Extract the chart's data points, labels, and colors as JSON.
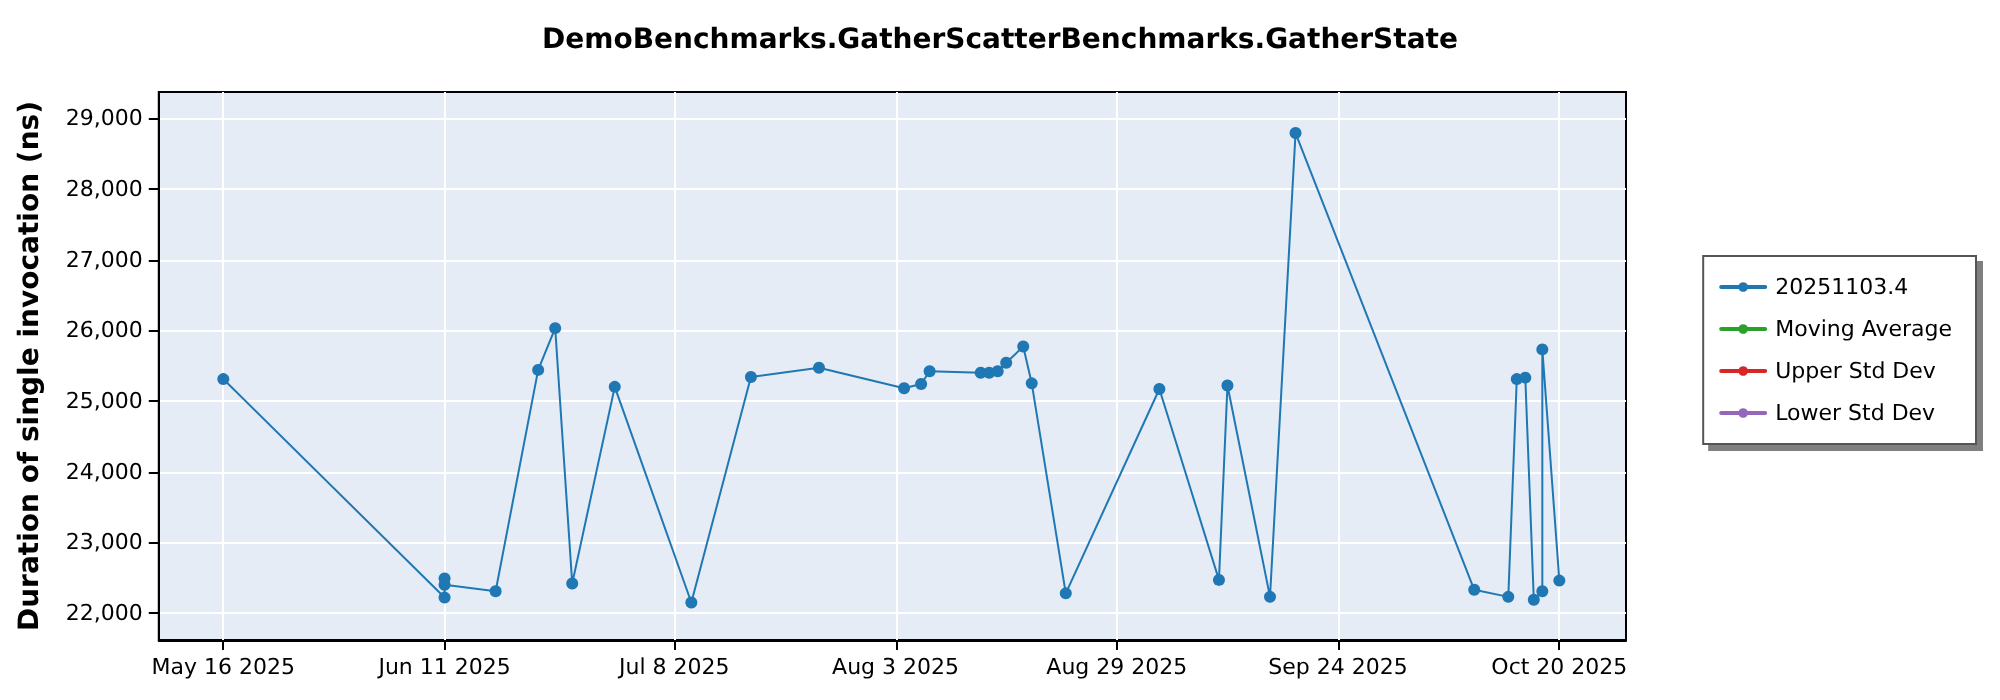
{
  "chart_data": {
    "type": "line",
    "title": "DemoBenchmarks.GatherScatterBenchmarks.GatherState",
    "ylabel": "Duration of single invocation (ns)",
    "x": [
      "2025-05-16",
      "2025-06-11",
      "2025-06-11",
      "2025-06-11",
      "2025-06-17",
      "2025-06-22",
      "2025-06-24",
      "2025-06-26",
      "2025-07-01",
      "2025-07-10",
      "2025-07-17",
      "2025-07-25",
      "2025-08-04",
      "2025-08-06",
      "2025-08-07",
      "2025-08-13",
      "2025-08-14",
      "2025-08-15",
      "2025-08-16",
      "2025-08-18",
      "2025-08-19",
      "2025-08-23",
      "2025-09-03",
      "2025-09-10",
      "2025-09-11",
      "2025-09-16",
      "2025-09-19",
      "2025-10-10",
      "2025-10-14",
      "2025-10-15",
      "2025-10-16",
      "2025-10-17",
      "2025-10-18",
      "2025-10-18",
      "2025-10-20"
    ],
    "series": [
      {
        "name": "20251103.4",
        "color": "#1f77b4",
        "values": [
          25310,
          22220,
          22490,
          22400,
          22310,
          25440,
          26030,
          22420,
          25200,
          22150,
          25340,
          25470,
          25180,
          25240,
          25420,
          25400,
          25400,
          25420,
          25540,
          25770,
          25250,
          22280,
          25170,
          22470,
          25220,
          22230,
          28790,
          22330,
          22230,
          25310,
          25330,
          22190,
          22310,
          25730,
          22460
        ]
      },
      {
        "name": "Moving Average",
        "color": "#2ca02c",
        "values": [
          null,
          null,
          null,
          null,
          null,
          null,
          null,
          null,
          null,
          null,
          null,
          null,
          null,
          null,
          null,
          null,
          null,
          null,
          null,
          null,
          null,
          null,
          null,
          null,
          null,
          null,
          null,
          null,
          null,
          null,
          null,
          null,
          null,
          null,
          null
        ]
      },
      {
        "name": "Upper Std Dev",
        "color": "#d62728",
        "values": [
          null,
          null,
          null,
          null,
          null,
          null,
          null,
          null,
          null,
          null,
          null,
          null,
          null,
          null,
          null,
          null,
          null,
          null,
          null,
          null,
          null,
          null,
          null,
          null,
          null,
          null,
          null,
          null,
          null,
          null,
          null,
          null,
          null,
          null,
          null
        ]
      },
      {
        "name": "Lower Std Dev",
        "color": "#9467bd",
        "values": [
          null,
          null,
          null,
          null,
          null,
          null,
          null,
          null,
          null,
          null,
          null,
          null,
          null,
          null,
          null,
          null,
          null,
          null,
          null,
          null,
          null,
          null,
          null,
          null,
          null,
          null,
          null,
          null,
          null,
          null,
          null,
          null,
          null,
          null,
          null
        ]
      }
    ],
    "xlim": [
      "2025-05-08T10:00",
      "2025-10-27T20:00"
    ],
    "xticks": [
      {
        "value": "2025-05-16",
        "label": "May 16 2025"
      },
      {
        "value": "2025-06-11",
        "label": "Jun 11 2025"
      },
      {
        "value": "2025-07-08",
        "label": "Jul 8 2025"
      },
      {
        "value": "2025-08-03",
        "label": "Aug 3 2025"
      },
      {
        "value": "2025-08-29",
        "label": "Aug 29 2025"
      },
      {
        "value": "2025-09-24",
        "label": "Sep 24 2025"
      },
      {
        "value": "2025-10-20",
        "label": "Oct 20 2025"
      }
    ],
    "ylim": [
      21620,
      29370
    ],
    "yticks": [
      {
        "value": 22000,
        "label": "22,000"
      },
      {
        "value": 23000,
        "label": "23,000"
      },
      {
        "value": 24000,
        "label": "24,000"
      },
      {
        "value": 25000,
        "label": "25,000"
      },
      {
        "value": 26000,
        "label": "26,000"
      },
      {
        "value": 27000,
        "label": "27,000"
      },
      {
        "value": 28000,
        "label": "28,000"
      },
      {
        "value": 29000,
        "label": "29,000"
      }
    ],
    "grid": true,
    "legend": "right",
    "marker": "circle",
    "line_style": "solid"
  }
}
